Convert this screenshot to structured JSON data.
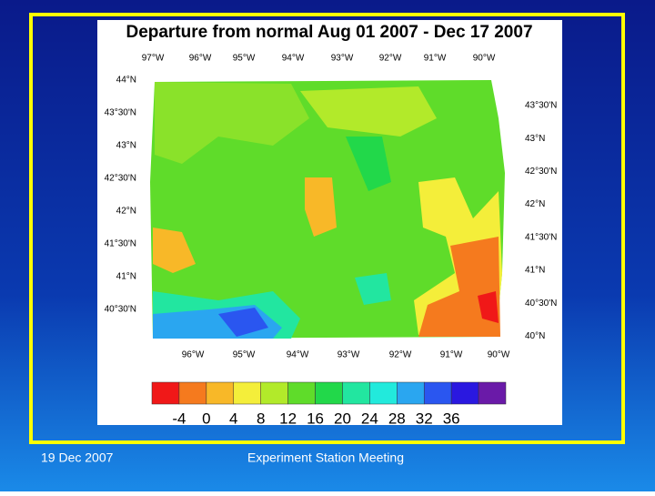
{
  "slide": {
    "map": {
      "title": "Departure from normal Aug 01 2007 - Dec 17 2007",
      "top_longitudes": [
        "97°W",
        "96°W",
        "95°W",
        "94°W",
        "93°W",
        "92°W",
        "91°W",
        "90°W"
      ],
      "bottom_longitudes": [
        "96°W",
        "95°W",
        "94°W",
        "93°W",
        "92°W",
        "91°W",
        "90°W"
      ],
      "left_latitudes": [
        "44°N",
        "43°30'N",
        "43°N",
        "42°30'N",
        "42°N",
        "41°30'N",
        "41°N",
        "40°30'N"
      ],
      "right_latitudes": [
        "43°30'N",
        "43°N",
        "42°30'N",
        "42°N",
        "41°30'N",
        "41°N",
        "40°30'N",
        "40°N"
      ],
      "colorbar": {
        "colors": [
          "#f01818",
          "#f57a1e",
          "#f8b828",
          "#f4ee3a",
          "#b2ea2a",
          "#5fdc2a",
          "#22d84a",
          "#22e6a0",
          "#22eadc",
          "#2aa6f0",
          "#2a56f0",
          "#2a18e0",
          "#6a1aa8"
        ],
        "labels": [
          -4,
          0,
          4,
          8,
          12,
          16,
          20,
          24,
          28,
          32,
          36
        ]
      }
    },
    "footer": {
      "date": "19 Dec 2007",
      "event": "Experiment Station Meeting"
    }
  }
}
